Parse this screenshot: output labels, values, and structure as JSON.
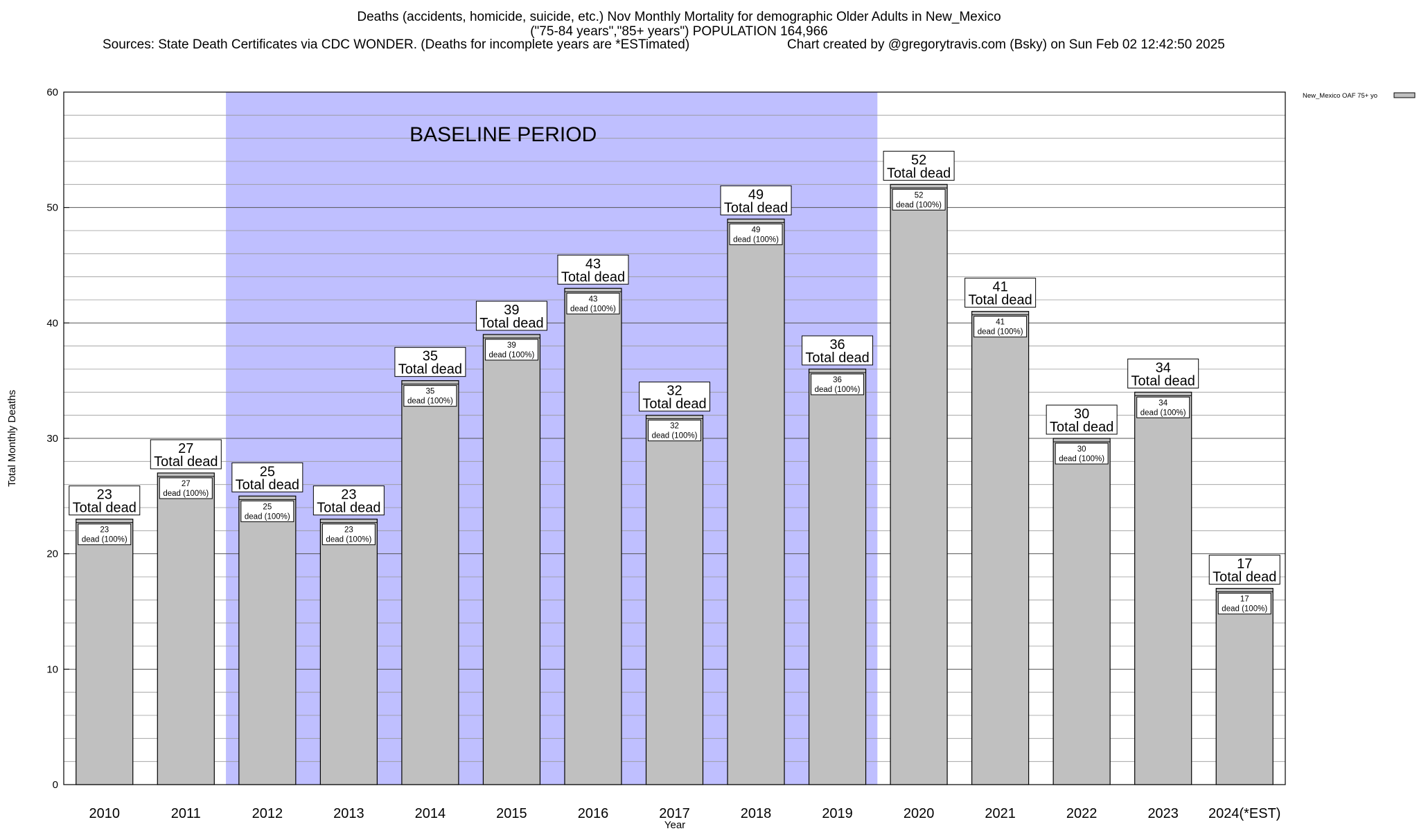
{
  "header": {
    "title_line1": "Deaths (accidents, homicide, suicide, etc.) Nov Monthly Mortality for demographic Older Adults in New_Mexico",
    "title_line2": "(\"75-84 years\",\"85+ years\") POPULATION 164,966",
    "sources": "Sources: State Death Certificates via CDC WONDER. (Deaths for incomplete years are *ESTimated)",
    "credit": "Chart created by @gregorytravis.com (Bsky) on Sun Feb 02 12:42:50 2025"
  },
  "chart_data": {
    "type": "bar",
    "xlabel": "Year",
    "ylabel": "Total Monthly Deaths",
    "ylim": [
      0,
      60
    ],
    "yticks": [
      0,
      10,
      20,
      30,
      40,
      50,
      60
    ],
    "minor_grid_step": 2,
    "grid": true,
    "categories": [
      "2010",
      "2011",
      "2012",
      "2013",
      "2014",
      "2015",
      "2016",
      "2017",
      "2018",
      "2019",
      "2020",
      "2021",
      "2022",
      "2023",
      "2024(*EST)"
    ],
    "series": [
      {
        "name": "New_Mexico OAF 75+ yo",
        "color": "#c0c0c0",
        "values": [
          23,
          27,
          25,
          23,
          35,
          39,
          43,
          32,
          49,
          36,
          52,
          41,
          30,
          34,
          17
        ]
      }
    ],
    "total_label_suffix": "Total dead",
    "inner_label_suffix": "dead (100%)",
    "baseline": {
      "label": "BASELINE PERIOD",
      "from": "2012",
      "to": "2019",
      "color": "#bfbfff"
    },
    "legend": {
      "placement": "top-right",
      "label": "New_Mexico OAF 75+ yo"
    }
  }
}
